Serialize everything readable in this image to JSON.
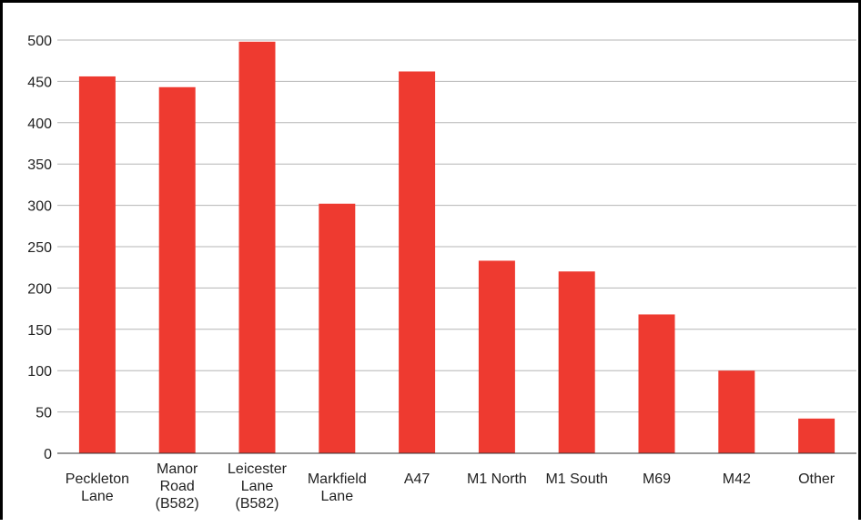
{
  "chart_data": {
    "type": "bar",
    "title": "",
    "xlabel": "",
    "ylabel": "",
    "ylim": [
      0,
      500
    ],
    "yticks": [
      0,
      50,
      100,
      150,
      200,
      250,
      300,
      350,
      400,
      450,
      500
    ],
    "grid": "horizontal",
    "legend": "none",
    "bar_color": "#ee3a30",
    "categories": [
      "Peckleton Lane",
      "Manor Road (B582)",
      "Leicester Lane (B582)",
      "Markfield Lane",
      "A47",
      "M1 North",
      "M1 South",
      "M69",
      "M42",
      "Other"
    ],
    "category_lines": [
      [
        "Peckleton",
        "Lane"
      ],
      [
        "Manor",
        "Road",
        "(B582)"
      ],
      [
        "Leicester",
        "Lane",
        "(B582)"
      ],
      [
        "Markfield",
        "Lane"
      ],
      [
        "A47"
      ],
      [
        "M1 North"
      ],
      [
        "M1 South"
      ],
      [
        "M69"
      ],
      [
        "M42"
      ],
      [
        "Other"
      ]
    ],
    "values": [
      456,
      443,
      498,
      302,
      462,
      233,
      220,
      168,
      100,
      42
    ]
  }
}
